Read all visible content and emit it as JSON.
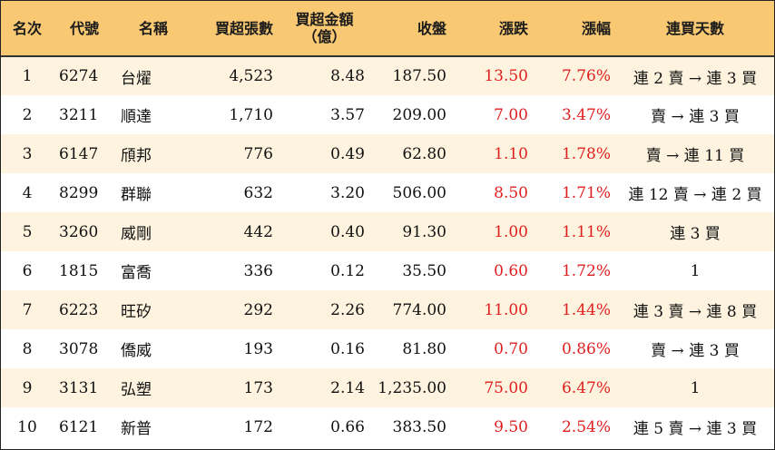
{
  "headers": [
    "名次",
    "代號",
    "名稱",
    "買超張數",
    "買超金額（億）",
    "收盤",
    "漲跌",
    "漲幅",
    "連買天數"
  ],
  "header_amount_line1": "買超金額",
  "header_amount_line2": "（億）",
  "rows": [
    {
      "rank": "1",
      "code": "6274",
      "name": "台燿",
      "shares": "4,523",
      "amount": "8.48",
      "close": "187.50",
      "change": "13.50",
      "pct": "7.76%",
      "streak": "連 2 賣 → 連 3 買"
    },
    {
      "rank": "2",
      "code": "3211",
      "name": "順達",
      "shares": "1,710",
      "amount": "3.57",
      "close": "209.00",
      "change": "7.00",
      "pct": "3.47%",
      "streak": "賣 → 連 3 買"
    },
    {
      "rank": "3",
      "code": "6147",
      "name": "頎邦",
      "shares": "776",
      "amount": "0.49",
      "close": "62.80",
      "change": "1.10",
      "pct": "1.78%",
      "streak": "賣 → 連 11 買"
    },
    {
      "rank": "4",
      "code": "8299",
      "name": "群聯",
      "shares": "632",
      "amount": "3.20",
      "close": "506.00",
      "change": "8.50",
      "pct": "1.71%",
      "streak": "連 12 賣 → 連 2 買"
    },
    {
      "rank": "5",
      "code": "3260",
      "name": "威剛",
      "shares": "442",
      "amount": "0.40",
      "close": "91.30",
      "change": "1.00",
      "pct": "1.11%",
      "streak": "連 3 買"
    },
    {
      "rank": "6",
      "code": "1815",
      "name": "富喬",
      "shares": "336",
      "amount": "0.12",
      "close": "35.50",
      "change": "0.60",
      "pct": "1.72%",
      "streak": "1"
    },
    {
      "rank": "7",
      "code": "6223",
      "name": "旺矽",
      "shares": "292",
      "amount": "2.26",
      "close": "774.00",
      "change": "11.00",
      "pct": "1.44%",
      "streak": "連 3 賣 → 連 8 買"
    },
    {
      "rank": "8",
      "code": "3078",
      "name": "僑威",
      "shares": "193",
      "amount": "0.16",
      "close": "81.80",
      "change": "0.70",
      "pct": "0.86%",
      "streak": "賣 → 連 3 買"
    },
    {
      "rank": "9",
      "code": "3131",
      "name": "弘塑",
      "shares": "173",
      "amount": "2.14",
      "close": "1,235.00",
      "change": "75.00",
      "pct": "6.47%",
      "streak": "1"
    },
    {
      "rank": "10",
      "code": "6121",
      "name": "新普",
      "shares": "172",
      "amount": "0.66",
      "close": "383.50",
      "change": "9.50",
      "pct": "2.54%",
      "streak": "連 5 賣 → 連 3 買"
    }
  ],
  "colors": {
    "header_bg": "#f8c873",
    "odd_row_bg": "#fdf3de",
    "positive": "#e02020"
  }
}
